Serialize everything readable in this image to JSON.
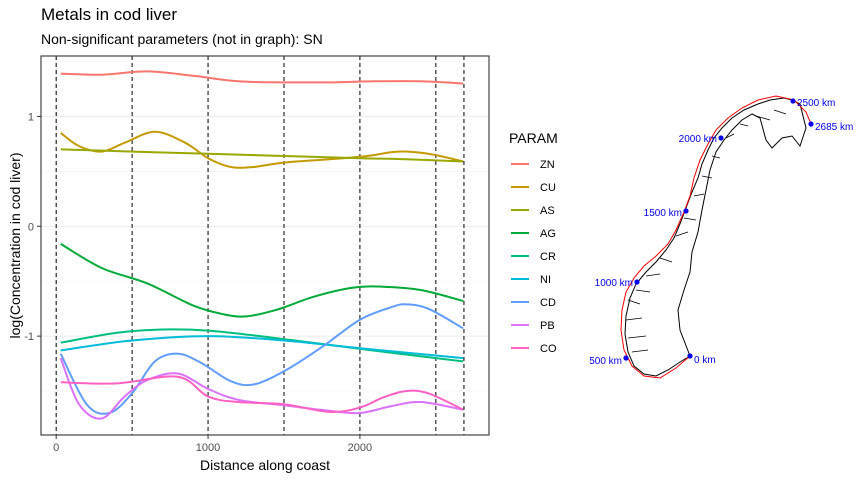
{
  "chart_data": {
    "type": "line",
    "title": "Metals in cod liver",
    "subtitle": "Non-significant parameters (not in graph): SN",
    "xlabel": "Distance along coast",
    "ylabel": "log(Concentration in cod liver)",
    "xlim": [
      -100,
      2850
    ],
    "ylim": [
      -1.9,
      1.55
    ],
    "xticks": [
      0,
      1000,
      2000
    ],
    "yticks": [
      -1,
      0,
      1
    ],
    "grid": true,
    "vlines": [
      0,
      500,
      1000,
      1500,
      2000,
      2500,
      2685
    ],
    "legend_title": "PARAM",
    "legend_position": "right",
    "series": [
      {
        "name": "ZN",
        "color": "#F8766D",
        "x": [
          30,
          300,
          600,
          900,
          1200,
          1500,
          1800,
          2100,
          2400,
          2680
        ],
        "y": [
          1.39,
          1.38,
          1.41,
          1.37,
          1.32,
          1.31,
          1.31,
          1.32,
          1.32,
          1.3
        ]
      },
      {
        "name": "CU",
        "color": "#C49A00",
        "x": [
          30,
          150,
          300,
          450,
          650,
          850,
          1000,
          1150,
          1300,
          1500,
          1800,
          2050,
          2250,
          2450,
          2680
        ],
        "y": [
          0.85,
          0.73,
          0.68,
          0.76,
          0.86,
          0.76,
          0.62,
          0.54,
          0.54,
          0.58,
          0.61,
          0.64,
          0.68,
          0.66,
          0.59
        ]
      },
      {
        "name": "AS",
        "color": "#99A800",
        "x": [
          30,
          500,
          1000,
          1500,
          2000,
          2300,
          2680
        ],
        "y": [
          0.7,
          0.68,
          0.66,
          0.64,
          0.62,
          0.61,
          0.59
        ]
      },
      {
        "name": "AG",
        "color": "#00A938",
        "x": [
          30,
          300,
          600,
          900,
          1100,
          1250,
          1450,
          1700,
          1950,
          2150,
          2400,
          2680
        ],
        "y": [
          -0.16,
          -0.38,
          -0.52,
          -0.72,
          -0.8,
          -0.82,
          -0.76,
          -0.64,
          -0.56,
          -0.55,
          -0.58,
          -0.68
        ]
      },
      {
        "name": "CR",
        "color": "#00BF7D",
        "x": [
          30,
          400,
          700,
          1000,
          1400,
          1800,
          2200,
          2680
        ],
        "y": [
          -1.06,
          -0.97,
          -0.94,
          -0.95,
          -1.01,
          -1.08,
          -1.15,
          -1.23
        ]
      },
      {
        "name": "NI",
        "color": "#00BCD8",
        "x": [
          30,
          500,
          1000,
          1500,
          2000,
          2680
        ],
        "y": [
          -1.13,
          -1.04,
          -1.0,
          -1.04,
          -1.11,
          -1.2
        ]
      },
      {
        "name": "CD",
        "color": "#619CFF",
        "x": [
          30,
          200,
          350,
          500,
          650,
          800,
          950,
          1150,
          1300,
          1500,
          1750,
          2000,
          2200,
          2300,
          2450,
          2680
        ],
        "y": [
          -1.16,
          -1.62,
          -1.7,
          -1.52,
          -1.23,
          -1.16,
          -1.24,
          -1.41,
          -1.44,
          -1.32,
          -1.1,
          -0.85,
          -0.74,
          -0.71,
          -0.75,
          -0.93
        ]
      },
      {
        "name": "PB",
        "color": "#DB72FB",
        "x": [
          30,
          150,
          300,
          450,
          600,
          800,
          1000,
          1200,
          1500,
          1800,
          2000,
          2200,
          2400,
          2680
        ],
        "y": [
          -1.2,
          -1.62,
          -1.75,
          -1.55,
          -1.4,
          -1.34,
          -1.48,
          -1.58,
          -1.63,
          -1.68,
          -1.7,
          -1.64,
          -1.6,
          -1.67
        ]
      },
      {
        "name": "CO",
        "color": "#FF61C3",
        "x": [
          30,
          400,
          800,
          1000,
          1200,
          1500,
          1800,
          2000,
          2150,
          2300,
          2450,
          2680
        ],
        "y": [
          -1.42,
          -1.43,
          -1.37,
          -1.55,
          -1.6,
          -1.62,
          -1.69,
          -1.65,
          -1.56,
          -1.5,
          -1.52,
          -1.67
        ]
      }
    ]
  },
  "map": {
    "labels": [
      "0 km",
      "500 km",
      "1000 km",
      "1500 km",
      "2000 km",
      "2500 km",
      "2685 km"
    ],
    "label_color": "#0000ee",
    "route_color": "#ff0000"
  }
}
